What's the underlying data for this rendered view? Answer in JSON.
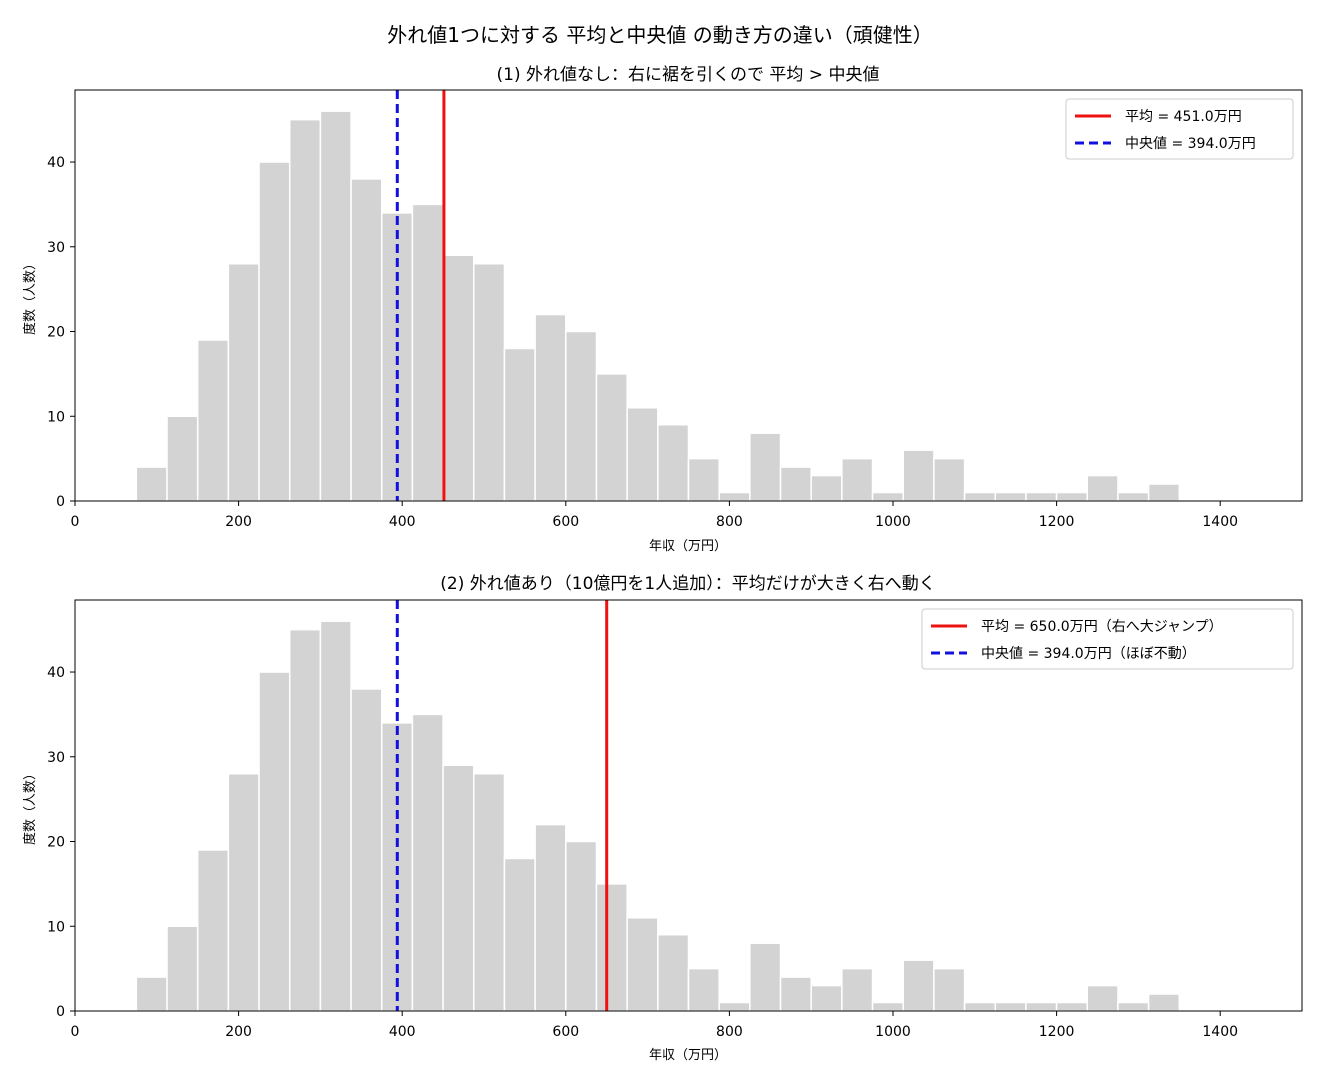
{
  "figure": {
    "suptitle": "外れ値1つに対する 平均と中央値 の動き方の違い（頑健性）",
    "colors": {
      "bar": "#d3d3d3",
      "mean": "#ee1111",
      "median": "#1111dd"
    }
  },
  "chart_data": [
    {
      "type": "bar",
      "title": "(1) 外れ値なし：右に裾を引くので 平均 > 中央値",
      "xlabel": "年収（万円）",
      "ylabel": "度数（人数）",
      "xlim": [
        0,
        1500
      ],
      "ylim": [
        0,
        48.5
      ],
      "xticks": [
        0,
        200,
        400,
        600,
        800,
        1000,
        1200,
        1400
      ],
      "yticks": [
        0,
        10,
        20,
        30,
        40
      ],
      "bin_edges": [
        75,
        112.5,
        150,
        187.5,
        225,
        262.5,
        300,
        337.5,
        375,
        412.5,
        450,
        487.5,
        525,
        562.5,
        600,
        637.5,
        675,
        712.5,
        750,
        787.5,
        825,
        862.5,
        900,
        937.5,
        975,
        1012.5,
        1050,
        1087.5,
        1125,
        1162.5,
        1200,
        1237.5,
        1275,
        1312.5,
        1350
      ],
      "values": [
        4,
        10,
        19,
        28,
        40,
        45,
        46,
        38,
        34,
        35,
        29,
        28,
        18,
        22,
        20,
        15,
        11,
        9,
        5,
        1,
        8,
        4,
        3,
        5,
        1,
        6,
        5,
        1,
        1,
        1,
        1,
        3,
        1,
        2
      ],
      "mean": 451.0,
      "median": 394.0,
      "legend": {
        "position": "top-right",
        "mean_label": "平均 = 451.0万円",
        "median_label": "中央値 = 394.0万円"
      }
    },
    {
      "type": "bar",
      "title": "(2) 外れ値あり（10億円を1人追加）：平均だけが大きく右へ動く",
      "xlabel": "年収（万円）",
      "ylabel": "度数（人数）",
      "xlim": [
        0,
        1500
      ],
      "ylim": [
        0,
        48.5
      ],
      "xticks": [
        0,
        200,
        400,
        600,
        800,
        1000,
        1200,
        1400
      ],
      "yticks": [
        0,
        10,
        20,
        30,
        40
      ],
      "bin_edges": [
        75,
        112.5,
        150,
        187.5,
        225,
        262.5,
        300,
        337.5,
        375,
        412.5,
        450,
        487.5,
        525,
        562.5,
        600,
        637.5,
        675,
        712.5,
        750,
        787.5,
        825,
        862.5,
        900,
        937.5,
        975,
        1012.5,
        1050,
        1087.5,
        1125,
        1162.5,
        1200,
        1237.5,
        1275,
        1312.5,
        1350
      ],
      "values": [
        4,
        10,
        19,
        28,
        40,
        45,
        46,
        38,
        34,
        35,
        29,
        28,
        18,
        22,
        20,
        15,
        11,
        9,
        5,
        1,
        8,
        4,
        3,
        5,
        1,
        6,
        5,
        1,
        1,
        1,
        1,
        3,
        1,
        2
      ],
      "mean": 650.0,
      "median": 394.0,
      "legend": {
        "position": "top-right",
        "mean_label": "平均 = 650.0万円（右へ大ジャンプ）",
        "median_label": "中央値 = 394.0万円（ほぼ不動）"
      }
    }
  ]
}
